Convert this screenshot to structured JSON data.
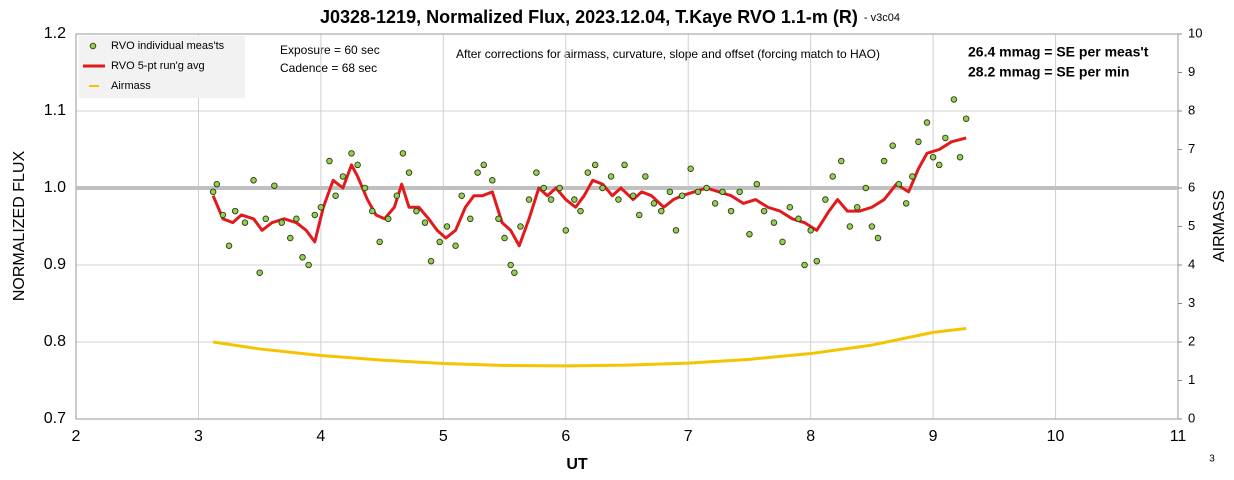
{
  "chart_data": {
    "type": "scatter",
    "title": "J0328-1219, Normalized Flux, 2023.12.04, T.Kaye RVO 1.1-m (R)",
    "subtitle": "- v3c04",
    "xlabel": "UT",
    "ylabel": "NORMALIZED FLUX",
    "y2label": "AIRMASS",
    "annotations": [
      "Exposure = 60 sec",
      "Cadence  = 68 sec",
      "After corrections for airmass, curvature, slope and offset (forcing match to HAO)",
      "26.4 mmag = SE per meas't",
      "28.2 mmag = SE per min"
    ],
    "page_number": "3",
    "xlim": [
      2,
      11
    ],
    "xticks": [
      2,
      3,
      4,
      5,
      6,
      7,
      8,
      9,
      10,
      11
    ],
    "ylim": [
      0.7,
      1.2
    ],
    "yticks": [
      {
        "value": 0.7,
        "label": "0.7"
      },
      0.8,
      0.9,
      {
        "value": 1,
        "label": "1.0"
      },
      1.1,
      1.2
    ],
    "y2lim": [
      0,
      10
    ],
    "y2ticks": [
      0,
      1,
      2,
      3,
      4,
      5,
      6,
      7,
      8,
      9,
      10
    ],
    "reference_line": 1,
    "grid": true,
    "legend": "upper left",
    "series": [
      {
        "name": "RVO individual meas'ts",
        "style": "markers",
        "color": "#92d050",
        "x": [
          3.12,
          3.15,
          3.2,
          3.25,
          3.3,
          3.38,
          3.45,
          3.5,
          3.55,
          3.62,
          3.68,
          3.75,
          3.8,
          3.85,
          3.9,
          3.95,
          4.0,
          4.07,
          4.12,
          4.18,
          4.25,
          4.3,
          4.36,
          4.42,
          4.48,
          4.55,
          4.62,
          4.67,
          4.72,
          4.78,
          4.85,
          4.9,
          4.97,
          5.03,
          5.1,
          5.15,
          5.22,
          5.28,
          5.33,
          5.4,
          5.45,
          5.5,
          5.55,
          5.58,
          5.63,
          5.7,
          5.76,
          5.82,
          5.88,
          5.95,
          6.0,
          6.07,
          6.12,
          6.18,
          6.24,
          6.3,
          6.37,
          6.43,
          6.48,
          6.55,
          6.6,
          6.65,
          6.72,
          6.78,
          6.85,
          6.9,
          6.95,
          7.02,
          7.08,
          7.15,
          7.22,
          7.28,
          7.35,
          7.42,
          7.5,
          7.56,
          7.62,
          7.7,
          7.77,
          7.83,
          7.9,
          7.95,
          8.0,
          8.05,
          8.12,
          8.18,
          8.25,
          8.32,
          8.38,
          8.45,
          8.5,
          8.55,
          8.6,
          8.67,
          8.72,
          8.78,
          8.83,
          8.88,
          8.95,
          9.0,
          9.05,
          9.1,
          9.17,
          9.22,
          9.27
        ],
        "values": [
          0.995,
          1.005,
          0.965,
          0.925,
          0.97,
          0.955,
          1.01,
          0.89,
          0.96,
          1.003,
          0.955,
          0.935,
          0.96,
          0.91,
          0.9,
          0.965,
          0.975,
          1.035,
          0.99,
          1.015,
          1.045,
          1.03,
          1.0,
          0.97,
          0.93,
          0.96,
          0.99,
          1.045,
          1.02,
          0.97,
          0.955,
          0.905,
          0.93,
          0.95,
          0.925,
          0.99,
          0.96,
          1.02,
          1.03,
          1.01,
          0.96,
          0.935,
          0.9,
          0.89,
          0.95,
          0.985,
          1.02,
          1.0,
          0.985,
          1.0,
          0.945,
          0.985,
          0.97,
          1.02,
          1.03,
          1.0,
          1.015,
          0.985,
          1.03,
          0.99,
          0.965,
          1.015,
          0.98,
          0.97,
          0.995,
          0.945,
          0.99,
          1.025,
          0.995,
          1.0,
          0.98,
          0.995,
          0.97,
          0.995,
          0.94,
          1.005,
          0.97,
          0.955,
          0.93,
          0.975,
          0.96,
          0.9,
          0.945,
          0.905,
          0.985,
          1.015,
          1.035,
          0.95,
          0.975,
          1.0,
          0.95,
          0.935,
          1.035,
          1.055,
          1.005,
          0.98,
          1.015,
          1.06,
          1.085,
          1.04,
          1.03,
          1.065,
          1.115,
          1.04,
          1.09
        ]
      },
      {
        "name": "RVO 5-pt run'g avg",
        "style": "line",
        "color": "#e31a1c",
        "x": [
          3.12,
          3.2,
          3.28,
          3.35,
          3.45,
          3.52,
          3.6,
          3.7,
          3.8,
          3.88,
          3.95,
          4.02,
          4.1,
          4.18,
          4.25,
          4.3,
          4.38,
          4.45,
          4.52,
          4.6,
          4.66,
          4.72,
          4.8,
          4.88,
          4.95,
          5.02,
          5.1,
          5.18,
          5.25,
          5.32,
          5.4,
          5.48,
          5.55,
          5.62,
          5.7,
          5.78,
          5.85,
          5.92,
          6.0,
          6.08,
          6.15,
          6.22,
          6.3,
          6.38,
          6.45,
          6.55,
          6.62,
          6.7,
          6.8,
          6.88,
          6.95,
          7.05,
          7.15,
          7.25,
          7.35,
          7.45,
          7.55,
          7.65,
          7.75,
          7.85,
          7.95,
          8.05,
          8.15,
          8.22,
          8.3,
          8.4,
          8.5,
          8.6,
          8.7,
          8.8,
          8.88,
          8.95,
          9.05,
          9.15,
          9.27
        ],
        "values": [
          0.99,
          0.96,
          0.955,
          0.965,
          0.96,
          0.945,
          0.955,
          0.96,
          0.955,
          0.945,
          0.93,
          0.975,
          1.01,
          1.0,
          1.03,
          1.015,
          0.985,
          0.965,
          0.96,
          0.975,
          1.005,
          0.975,
          0.975,
          0.96,
          0.945,
          0.935,
          0.945,
          0.975,
          0.99,
          0.99,
          0.995,
          0.955,
          0.945,
          0.925,
          0.96,
          1.0,
          0.99,
          1.0,
          0.985,
          0.975,
          0.99,
          1.01,
          1.005,
          0.99,
          1.0,
          0.985,
          0.995,
          0.99,
          0.975,
          0.985,
          0.99,
          0.995,
          1.0,
          0.995,
          0.99,
          0.98,
          0.985,
          0.975,
          0.97,
          0.96,
          0.955,
          0.945,
          0.97,
          0.985,
          0.97,
          0.97,
          0.975,
          0.985,
          1.005,
          0.995,
          1.025,
          1.045,
          1.05,
          1.06,
          1.065
        ]
      },
      {
        "name": "Airmass",
        "style": "line",
        "axis": "y2",
        "color": "#f5c400",
        "x": [
          3.12,
          3.5,
          4,
          4.5,
          5,
          5.5,
          6,
          6.5,
          7,
          7.5,
          8,
          8.5,
          9,
          9.27
        ],
        "values": [
          2.0,
          1.82,
          1.65,
          1.53,
          1.44,
          1.39,
          1.38,
          1.4,
          1.45,
          1.55,
          1.7,
          1.92,
          2.25,
          2.35
        ]
      }
    ]
  }
}
